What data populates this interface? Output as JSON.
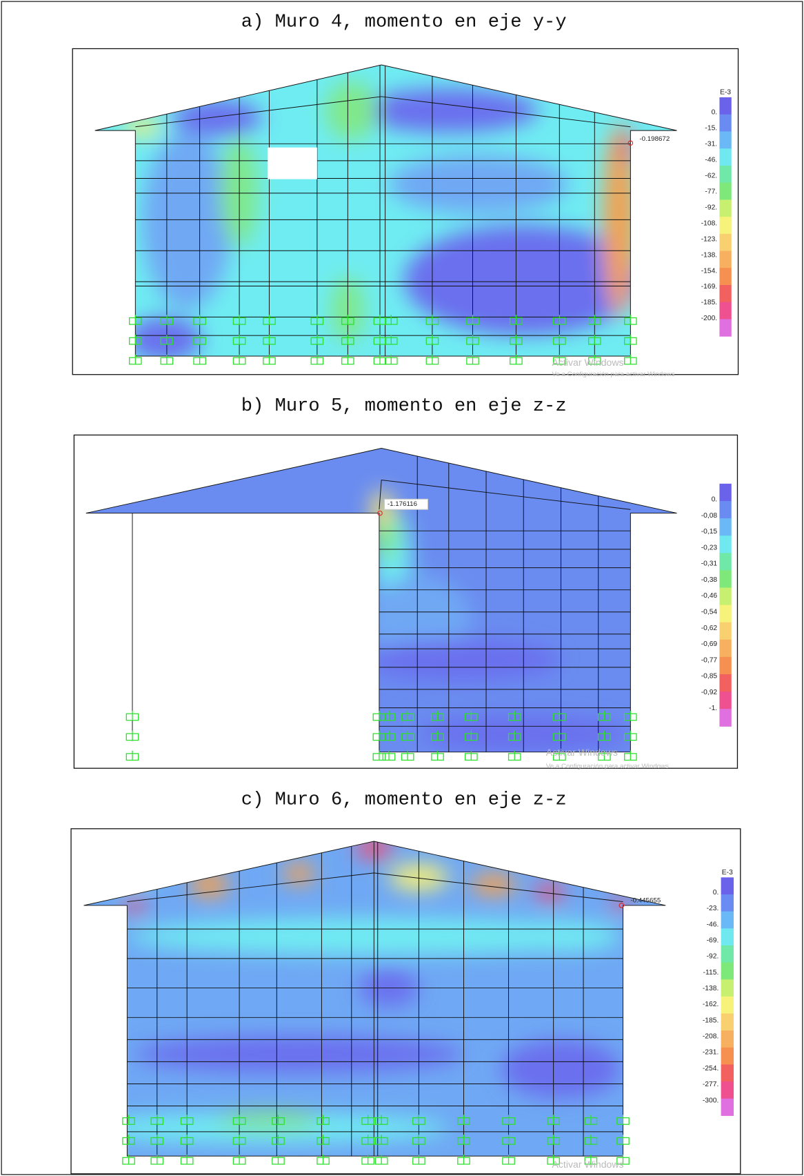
{
  "panels": [
    {
      "caption": "a) Muro 4, momento en eje y-y",
      "legend": {
        "exponent": "E-3",
        "labels": [
          "0.",
          "-15.",
          "-31.",
          "-46.",
          "-62.",
          "-77.",
          "-92.",
          "-108.",
          "-123.",
          "-138.",
          "-154.",
          "-169.",
          "-185.",
          "-200."
        ]
      },
      "annotation": "-0.198672",
      "watermark": [
        "Activar Windows",
        "Ve a Configuración para activar Windows"
      ]
    },
    {
      "caption": "b) Muro 5, momento en eje z-z",
      "legend": {
        "labels": [
          "0.",
          "-0,08",
          "-0,15",
          "-0,23",
          "-0,31",
          "-0,38",
          "-0,46",
          "-0,54",
          "-0,62",
          "-0,69",
          "-0,77",
          "-0,85",
          "-0,92",
          "-1."
        ]
      },
      "annotation": "-1.176116",
      "watermark": [
        "Activar Windows",
        "Ve a Configuración para activar Windows"
      ]
    },
    {
      "caption": "c) Muro 6, momento en eje z-z",
      "legend": {
        "exponent": "E-3",
        "labels": [
          "0.",
          "-23.",
          "-46.",
          "-69.",
          "-92.",
          "-115.",
          "-138.",
          "-162.",
          "-185.",
          "-208.",
          "-231.",
          "-254.",
          "-277.",
          "-300."
        ]
      },
      "annotation": "-0.445655",
      "watermark": [
        "Activar Windows"
      ]
    }
  ]
}
